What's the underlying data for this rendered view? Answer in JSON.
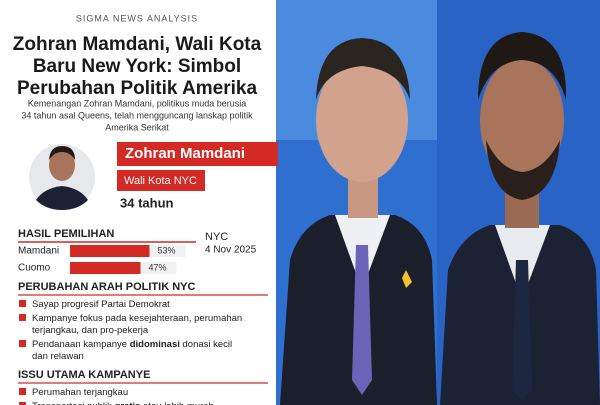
{
  "header": {
    "kicker": "SIGMA NEWS ANALYSIS",
    "title_lines": [
      "Zohran Mamdani, Wali Kota",
      "Baru New York: Simbol",
      "Perubahan Politik Amerika"
    ],
    "subtitle_lines": [
      "Kemenangan Zohran Mamdani, politikus muda berusia",
      "34 tahun asal Queens, telah mengguncang lanskap politik",
      "Amerika Serikat"
    ]
  },
  "profile": {
    "name": "Zohran Mamdani",
    "role": "Wali Kota NYC",
    "age": "34 tahun"
  },
  "results": {
    "title": "HASIL PEMILIHAN",
    "place": "NYC",
    "date": "4 Nov 2025",
    "rows": [
      {
        "name": "Mamdani",
        "value": 53,
        "label": "53%"
      },
      {
        "name": "Cuomo",
        "value": 47,
        "label": "47%"
      }
    ]
  },
  "sections": [
    {
      "title": "PERUBAHAN ARAH POLITIK NYC",
      "items": [
        [
          [
            {
              "text": "Sayap progresif Partai Demokrat"
            }
          ]
        ],
        [
          [
            {
              "text": "Kampanye fokus pada kesejahteraan, perumahan"
            }
          ],
          [
            {
              "text": "terjangkau, dan pro-pekerja"
            }
          ]
        ],
        [
          [
            {
              "text": "Pendanaan kampanye "
            },
            {
              "text": "didominasi",
              "bold": true
            },
            {
              "text": " donasi kecil"
            }
          ],
          [
            {
              "text": "dan relawan"
            }
          ]
        ]
      ]
    },
    {
      "title": "ISSU UTAMA KAMPANYE",
      "items": [
        [
          [
            {
              "text": "Perumahan terjangkau"
            }
          ]
        ],
        [
          [
            {
              "text": "Transportasi publik "
            },
            {
              "text": "gratis",
              "bold": true
            },
            {
              "text": " atau lebih murah"
            }
          ]
        ]
      ]
    }
  ]
}
